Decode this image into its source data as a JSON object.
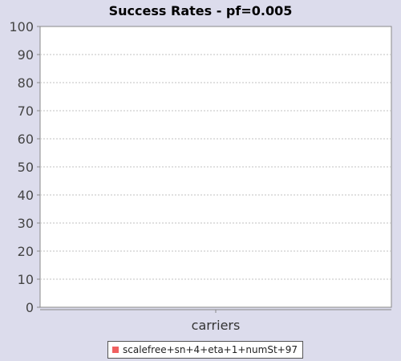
{
  "chart_data": {
    "type": "bar",
    "title": "Success Rates - pf=0.005",
    "xlabel": "",
    "ylabel": "",
    "categories": [
      "carriers"
    ],
    "series": [
      {
        "name": "scalefree+sn+4+eta+1+numSt+97",
        "color": "#f06060",
        "values": [
          0
        ]
      }
    ],
    "ylim": [
      0,
      100
    ],
    "yticks": [
      "0",
      "10",
      "20",
      "30",
      "40",
      "50",
      "60",
      "70",
      "80",
      "90",
      "100"
    ],
    "grid": true,
    "legend_position": "bottom-center"
  },
  "colors": {
    "background": "#dcdcec",
    "plot_background": "#ffffff",
    "gridline": "#c0c0c0",
    "axis": "#888888"
  }
}
